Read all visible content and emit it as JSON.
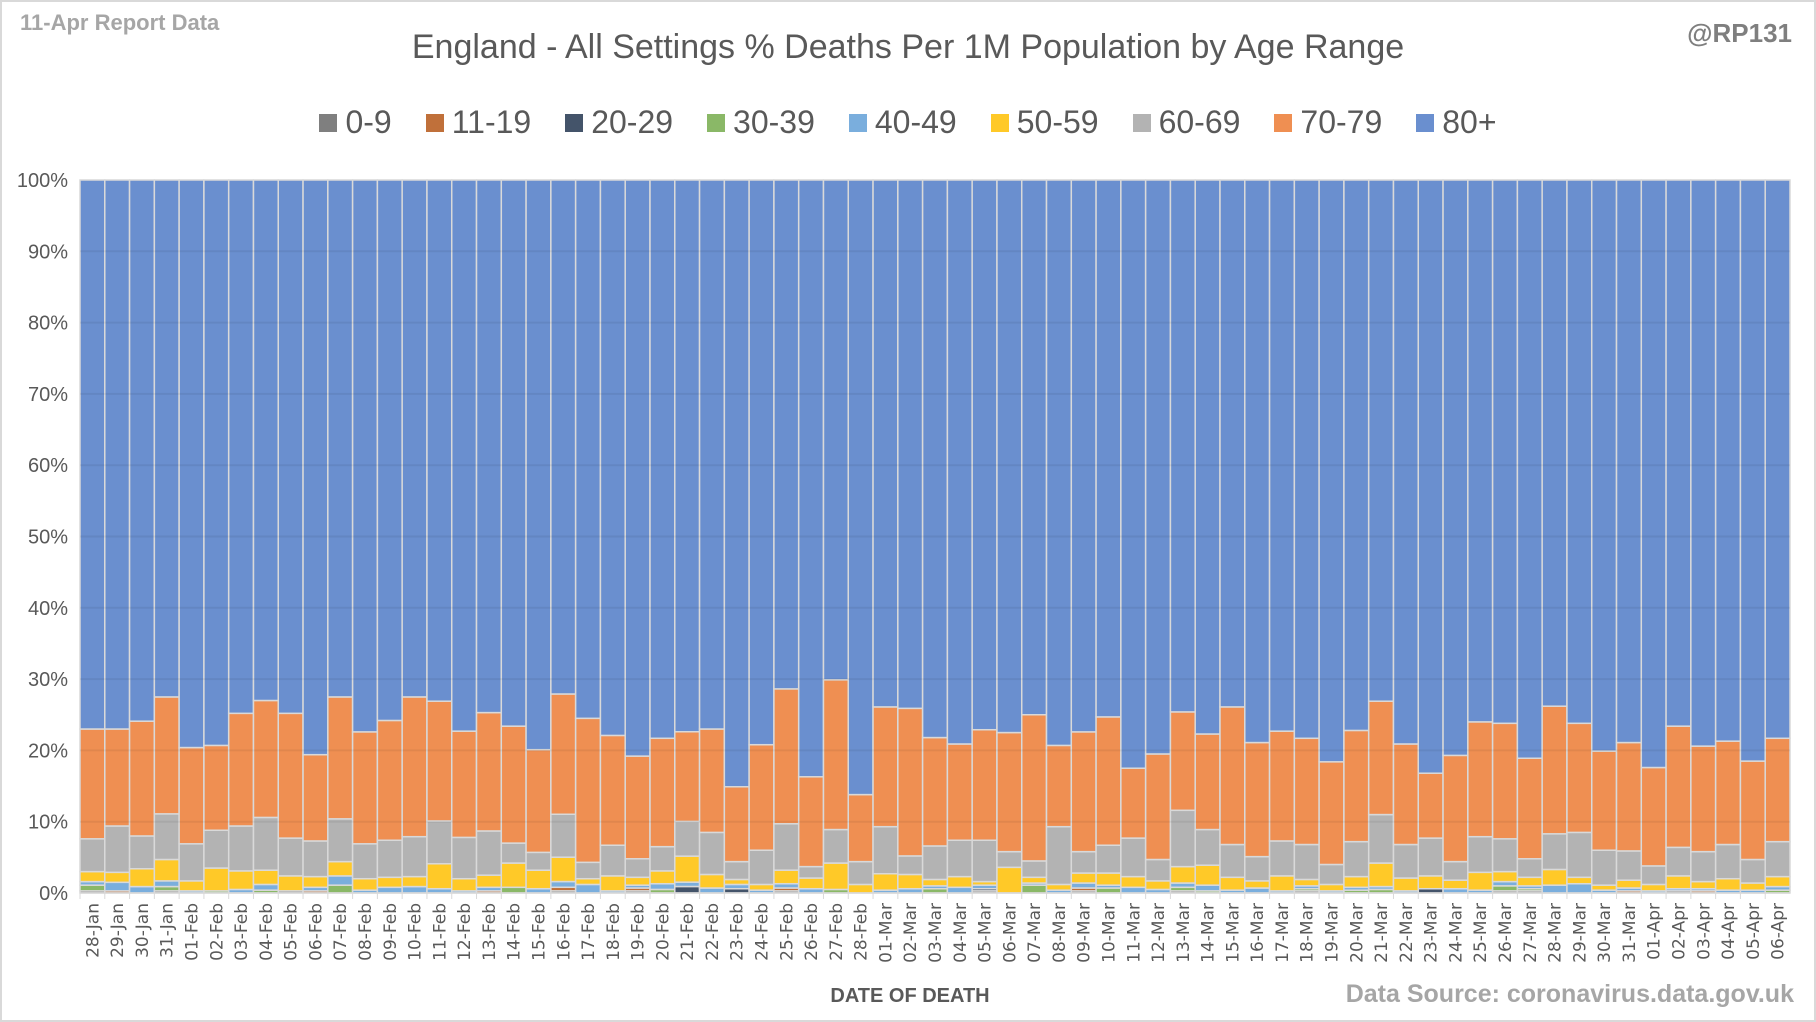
{
  "header": {
    "report_label": "11-Apr Report Data",
    "handle": "@RP131",
    "source": "Data Source: coronavirus.data.gov.uk"
  },
  "chart_data": {
    "type": "bar",
    "stacked": "percent",
    "title": "England - All Settings % Deaths Per 1M Population by Age Range",
    "xlabel": "DATE OF DEATH",
    "ylabel": "",
    "ylim": [
      0,
      100
    ],
    "yticks": [
      "0%",
      "10%",
      "20%",
      "30%",
      "40%",
      "50%",
      "60%",
      "70%",
      "80%",
      "90%",
      "100%"
    ],
    "legend_position": "top",
    "grid": true,
    "categories": [
      "28-Jan",
      "29-Jan",
      "30-Jan",
      "31-Jan",
      "01-Feb",
      "02-Feb",
      "03-Feb",
      "04-Feb",
      "05-Feb",
      "06-Feb",
      "07-Feb",
      "08-Feb",
      "09-Feb",
      "10-Feb",
      "11-Feb",
      "12-Feb",
      "13-Feb",
      "14-Feb",
      "15-Feb",
      "16-Feb",
      "17-Feb",
      "18-Feb",
      "19-Feb",
      "20-Feb",
      "21-Feb",
      "22-Feb",
      "23-Feb",
      "24-Feb",
      "25-Feb",
      "26-Feb",
      "27-Feb",
      "28-Feb",
      "01-Mar",
      "02-Mar",
      "03-Mar",
      "04-Mar",
      "05-Mar",
      "06-Mar",
      "07-Mar",
      "08-Mar",
      "09-Mar",
      "10-Mar",
      "11-Mar",
      "12-Mar",
      "13-Mar",
      "14-Mar",
      "15-Mar",
      "16-Mar",
      "17-Mar",
      "18-Mar",
      "19-Mar",
      "20-Mar",
      "21-Mar",
      "22-Mar",
      "23-Mar",
      "24-Mar",
      "25-Mar",
      "26-Mar",
      "27-Mar",
      "28-Mar",
      "29-Mar",
      "30-Mar",
      "31-Mar",
      "01-Apr",
      "02-Apr",
      "03-Apr",
      "04-Apr",
      "05-Apr",
      "06-Apr"
    ],
    "series": [
      {
        "name": "0-9",
        "color": "#7f7f7f",
        "values": [
          0.3,
          0.0,
          0.0,
          0.3,
          0.0,
          0.0,
          0.0,
          0.0,
          0.3,
          0.0,
          0.0,
          0.0,
          0.0,
          0.0,
          0.0,
          0.0,
          0.0,
          0.0,
          0.0,
          0.3,
          0.0,
          0.0,
          0.3,
          0.0,
          0.0,
          0.0,
          0.0,
          0.0,
          0.3,
          0.0,
          0.0,
          0.0,
          0.0,
          0.0,
          0.0,
          0.0,
          0.3,
          0.0,
          0.0,
          0.0,
          0.3,
          0.0,
          0.0,
          0.0,
          0.3,
          0.0,
          0.0,
          0.0,
          0.0,
          0.3,
          0.0,
          0.0,
          0.0,
          0.0,
          0.0,
          0.0,
          0.0,
          0.3,
          0.3,
          0.0,
          0.0,
          0.0,
          0.0,
          0.0,
          0.3,
          0.0,
          0.0,
          0.0,
          0.0
        ]
      },
      {
        "name": "11-19",
        "color": "#c0703a",
        "values": [
          0.0,
          0.3,
          0.0,
          0.0,
          0.0,
          0.0,
          0.0,
          0.0,
          0.0,
          0.3,
          0.0,
          0.0,
          0.0,
          0.0,
          0.0,
          0.0,
          0.3,
          0.0,
          0.0,
          0.5,
          0.0,
          0.0,
          0.4,
          0.0,
          0.0,
          0.0,
          0.0,
          0.0,
          0.4,
          0.0,
          0.0,
          0.0,
          0.0,
          0.0,
          0.0,
          0.0,
          0.0,
          0.0,
          0.0,
          0.0,
          0.4,
          0.0,
          0.0,
          0.0,
          0.0,
          0.0,
          0.0,
          0.0,
          0.0,
          0.0,
          0.0,
          0.0,
          0.0,
          0.0,
          0.0,
          0.0,
          0.0,
          0.0,
          0.0,
          0.0,
          0.0,
          0.0,
          0.3,
          0.0,
          0.0,
          0.3,
          0.0,
          0.0,
          0.0
        ]
      },
      {
        "name": "20-29",
        "color": "#44546a",
        "values": [
          0.0,
          0.0,
          0.0,
          0.0,
          0.0,
          0.0,
          0.0,
          0.0,
          0.0,
          0.0,
          0.0,
          0.0,
          0.0,
          0.0,
          0.0,
          0.0,
          0.0,
          0.0,
          0.0,
          0.0,
          0.0,
          0.0,
          0.0,
          0.0,
          0.9,
          0.0,
          0.6,
          0.0,
          0.0,
          0.0,
          0.0,
          0.0,
          0.0,
          0.0,
          0.0,
          0.0,
          0.3,
          0.0,
          0.0,
          0.0,
          0.0,
          0.0,
          0.0,
          0.0,
          0.0,
          0.0,
          0.0,
          0.0,
          0.0,
          0.0,
          0.0,
          0.0,
          0.0,
          0.0,
          0.6,
          0.0,
          0.0,
          0.0,
          0.0,
          0.0,
          0.0,
          0.0,
          0.0,
          0.0,
          0.0,
          0.0,
          0.0,
          0.0,
          0.0
        ]
      },
      {
        "name": "30-39",
        "color": "#8ab867",
        "values": [
          0.8,
          0.0,
          0.0,
          0.6,
          0.0,
          0.3,
          0.0,
          0.4,
          0.0,
          0.0,
          1.1,
          0.0,
          0.0,
          0.0,
          0.0,
          0.0,
          0.0,
          0.8,
          0.0,
          0.0,
          0.0,
          0.0,
          0.0,
          0.5,
          0.0,
          0.0,
          0.0,
          0.0,
          0.0,
          0.0,
          0.5,
          0.0,
          0.0,
          0.0,
          0.6,
          0.0,
          0.0,
          0.0,
          1.1,
          0.0,
          0.0,
          0.7,
          0.0,
          0.0,
          0.5,
          0.3,
          0.0,
          0.0,
          0.0,
          0.3,
          0.0,
          0.4,
          0.5,
          0.0,
          0.0,
          0.0,
          0.0,
          0.7,
          0.3,
          0.0,
          0.0,
          0.0,
          0.0,
          0.0,
          0.0,
          0.0,
          0.0,
          0.0,
          0.4
        ]
      },
      {
        "name": "40-49",
        "color": "#7aaedd",
        "values": [
          0.5,
          1.2,
          0.9,
          0.8,
          0.3,
          0.0,
          0.5,
          0.8,
          0.0,
          0.5,
          1.3,
          0.4,
          0.8,
          0.9,
          0.6,
          0.3,
          0.5,
          0.0,
          0.6,
          0.8,
          1.2,
          0.3,
          0.4,
          0.8,
          0.6,
          0.7,
          0.6,
          0.4,
          0.6,
          0.6,
          0.0,
          0.0,
          0.4,
          0.6,
          0.4,
          0.8,
          0.5,
          0.0,
          0.3,
          0.4,
          0.7,
          0.4,
          0.8,
          0.5,
          0.6,
          0.8,
          0.4,
          0.7,
          0.3,
          0.4,
          0.3,
          0.4,
          0.4,
          0.3,
          0.0,
          0.6,
          0.4,
          0.6,
          0.4,
          1.1,
          1.3,
          0.4,
          0.4,
          0.3,
          0.3,
          0.3,
          0.4,
          0.4,
          0.5
        ]
      },
      {
        "name": "50-59",
        "color": "#ffc928",
        "values": [
          1.4,
          1.4,
          2.5,
          3.0,
          1.4,
          3.2,
          2.6,
          2.0,
          2.1,
          1.5,
          2.0,
          1.6,
          1.4,
          1.4,
          3.5,
          1.7,
          1.7,
          3.4,
          2.6,
          3.4,
          0.8,
          2.1,
          1.1,
          1.8,
          3.6,
          1.9,
          0.7,
          0.8,
          1.9,
          1.5,
          3.7,
          1.2,
          2.3,
          2.0,
          0.9,
          1.5,
          0.5,
          3.6,
          0.8,
          0.8,
          1.4,
          1.7,
          1.5,
          1.2,
          2.3,
          2.8,
          1.8,
          1.0,
          2.1,
          0.9,
          0.9,
          1.5,
          3.3,
          1.8,
          1.8,
          1.2,
          2.5,
          1.4,
          1.2,
          2.2,
          0.9,
          0.7,
          1.1,
          0.9,
          1.8,
          1.0,
          1.6,
          1.0,
          1.4
        ]
      },
      {
        "name": "60-69",
        "color": "#b3b3b3",
        "values": [
          4.6,
          6.5,
          4.6,
          6.4,
          5.2,
          5.3,
          6.3,
          7.4,
          5.3,
          5.0,
          6.0,
          4.9,
          5.2,
          5.6,
          6.0,
          5.8,
          6.2,
          2.8,
          2.5,
          6.0,
          2.3,
          4.3,
          2.6,
          3.4,
          4.8,
          5.9,
          2.5,
          4.8,
          6.5,
          1.6,
          4.7,
          3.2,
          6.6,
          2.6,
          4.7,
          5.1,
          5.8,
          2.2,
          2.3,
          8.1,
          3.0,
          3.9,
          5.4,
          3.0,
          7.9,
          5.0,
          4.6,
          3.4,
          4.9,
          4.9,
          2.8,
          4.9,
          6.8,
          4.7,
          5.3,
          2.6,
          5.0,
          4.6,
          2.6,
          5.0,
          6.3,
          4.9,
          4.1,
          2.6,
          4.0,
          4.2,
          4.8,
          3.3,
          4.9
        ]
      },
      {
        "name": "70-79",
        "color": "#ef8f52",
        "values": [
          15.4,
          13.6,
          16.1,
          16.4,
          13.5,
          11.9,
          15.8,
          16.4,
          17.5,
          12.1,
          17.1,
          15.7,
          16.8,
          19.6,
          16.8,
          14.9,
          16.6,
          16.4,
          14.4,
          16.8,
          20.2,
          15.4,
          14.4,
          15.2,
          12.4,
          14.5,
          10.5,
          14.8,
          18.9,
          12.6,
          21.0,
          9.4,
          16.8,
          20.7,
          15.2,
          13.5,
          15.5,
          16.7,
          20.5,
          11.4,
          16.8,
          18.0,
          9.8,
          14.8,
          13.8,
          13.4,
          19.3,
          16.0,
          15.4,
          14.9,
          14.4,
          15.6,
          15.9,
          14.1,
          9.1,
          14.9,
          16.1,
          16.2,
          14.1,
          17.9,
          15.3,
          13.9,
          15.2,
          13.8,
          17.0,
          14.8,
          14.5,
          13.8,
          14.5
        ]
      },
      {
        "name": "80+",
        "color": "#6a8fcf",
        "values": [
          77.0,
          77.0,
          75.9,
          72.5,
          79.6,
          79.3,
          74.8,
          73.0,
          74.8,
          80.6,
          72.5,
          77.4,
          75.8,
          72.5,
          73.1,
          77.3,
          74.7,
          76.6,
          79.9,
          71.8,
          75.5,
          77.9,
          80.8,
          78.3,
          76.3,
          77.0,
          85.1,
          79.2,
          71.3,
          83.7,
          70.1,
          86.2,
          73.9,
          74.1,
          78.2,
          79.1,
          77.1,
          77.5,
          75.0,
          79.3,
          77.4,
          75.3,
          82.5,
          80.5,
          74.6,
          77.7,
          73.9,
          78.9,
          77.3,
          78.3,
          81.6,
          77.2,
          73.1,
          79.1,
          83.2,
          80.7,
          76.0,
          76.2,
          81.1,
          73.8,
          76.2,
          80.1,
          78.9,
          82.4,
          76.6,
          79.4,
          78.7,
          81.5,
          78.3
        ]
      }
    ]
  }
}
